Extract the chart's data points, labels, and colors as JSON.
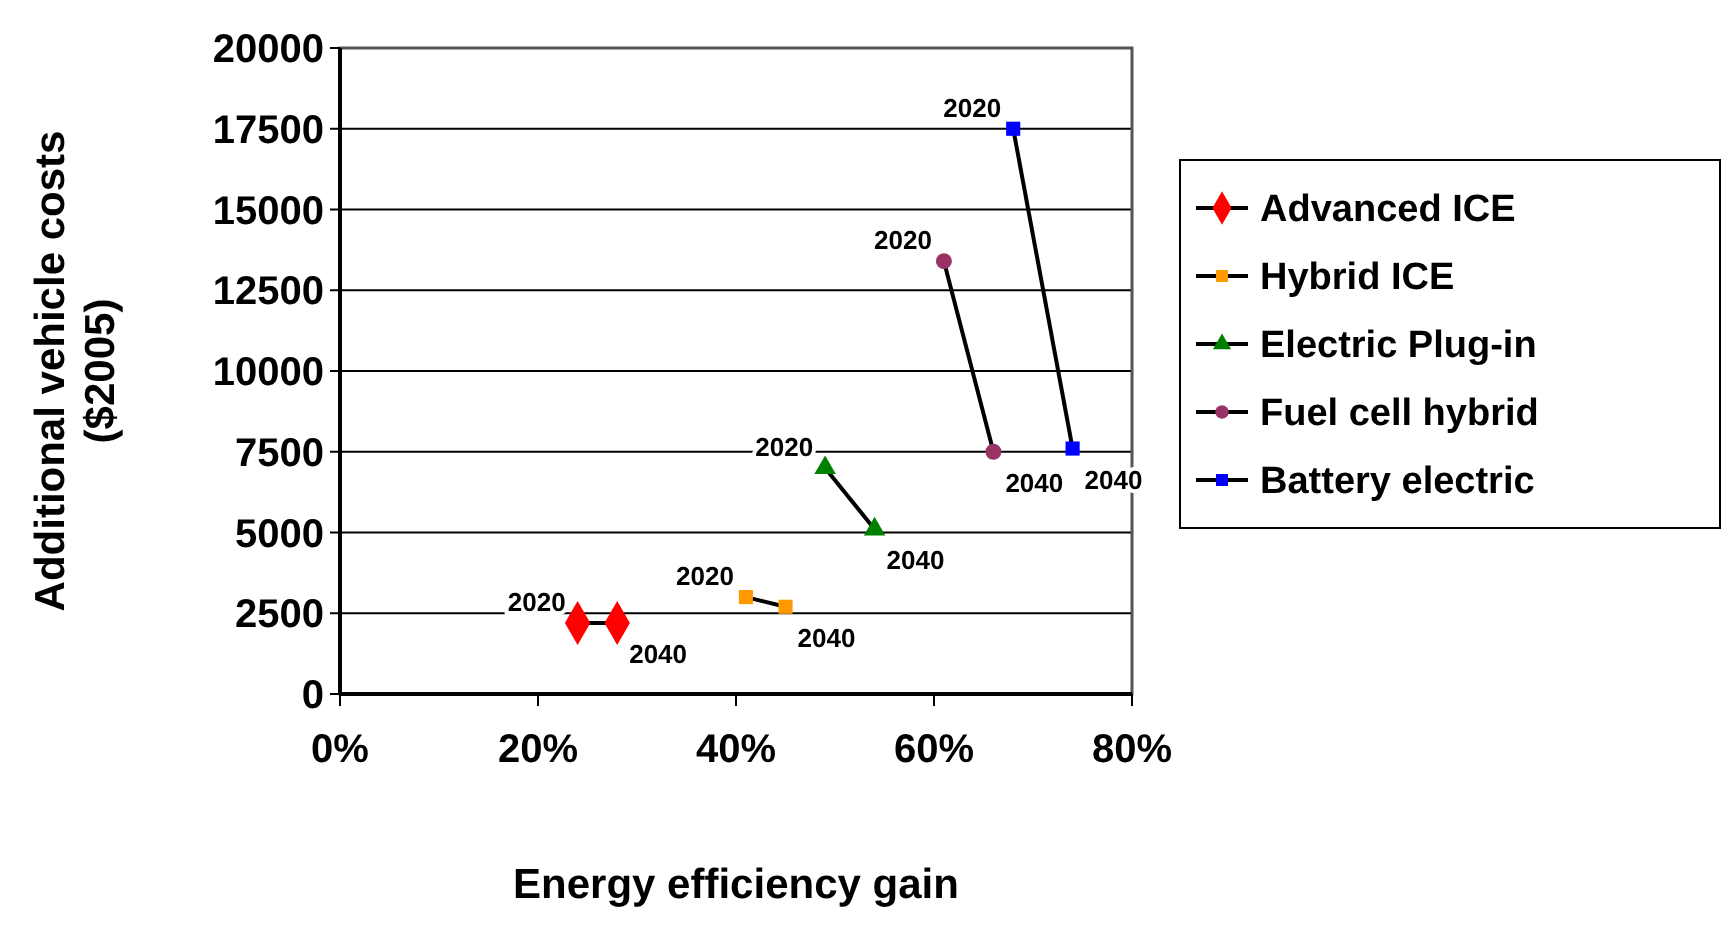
{
  "chart_data": {
    "type": "line",
    "xlabel": "Energy efficiency gain",
    "ylabel": "Additional vehicle costs ($2005)",
    "xlim": [
      0,
      80
    ],
    "xticks": [
      {
        "value": 0,
        "label": "0%"
      },
      {
        "value": 20,
        "label": "20%"
      },
      {
        "value": 40,
        "label": "40%"
      },
      {
        "value": 60,
        "label": "60%"
      },
      {
        "value": 80,
        "label": "80%"
      }
    ],
    "ylim": [
      0,
      20000
    ],
    "yticks": [
      0,
      2500,
      5000,
      7500,
      10000,
      12500,
      15000,
      17500,
      20000
    ],
    "grid": "y",
    "legend": "right",
    "line_style": "solid",
    "series": [
      {
        "name": "Advanced ICE",
        "color": "#ff0000",
        "marker": "diamond",
        "x": [
          24,
          28
        ],
        "values": [
          2200,
          2200
        ]
      },
      {
        "name": "Hybrid ICE",
        "color": "#ff9900",
        "marker": "square",
        "x": [
          41,
          45
        ],
        "values": [
          3000,
          2700
        ]
      },
      {
        "name": "Electric Plug-in",
        "color": "#008000",
        "marker": "triangle",
        "x": [
          49,
          54
        ],
        "values": [
          7000,
          5100
        ]
      },
      {
        "name": "Fuel cell hybrid",
        "color": "#993366",
        "marker": "circle",
        "x": [
          61,
          66
        ],
        "values": [
          13400,
          7500
        ]
      },
      {
        "name": "Battery electric",
        "color": "#0000ff",
        "marker": "square",
        "x": [
          68,
          74
        ],
        "values": [
          17500,
          7600
        ]
      }
    ],
    "annotations": [
      {
        "text": "2020",
        "x": 24,
        "y": 2200
      },
      {
        "text": "2040",
        "x": 28,
        "y": 2200
      },
      {
        "text": "2020",
        "x": 41,
        "y": 3000
      },
      {
        "text": "2040",
        "x": 45,
        "y": 2700
      },
      {
        "text": "2020",
        "x": 49,
        "y": 7000
      },
      {
        "text": "2040",
        "x": 54,
        "y": 5100
      },
      {
        "text": "2020",
        "x": 61,
        "y": 13400
      },
      {
        "text": "2040",
        "x": 66,
        "y": 7500
      },
      {
        "text": "2020",
        "x": 68,
        "y": 17500
      },
      {
        "text": "2040",
        "x": 74,
        "y": 7600
      }
    ]
  }
}
